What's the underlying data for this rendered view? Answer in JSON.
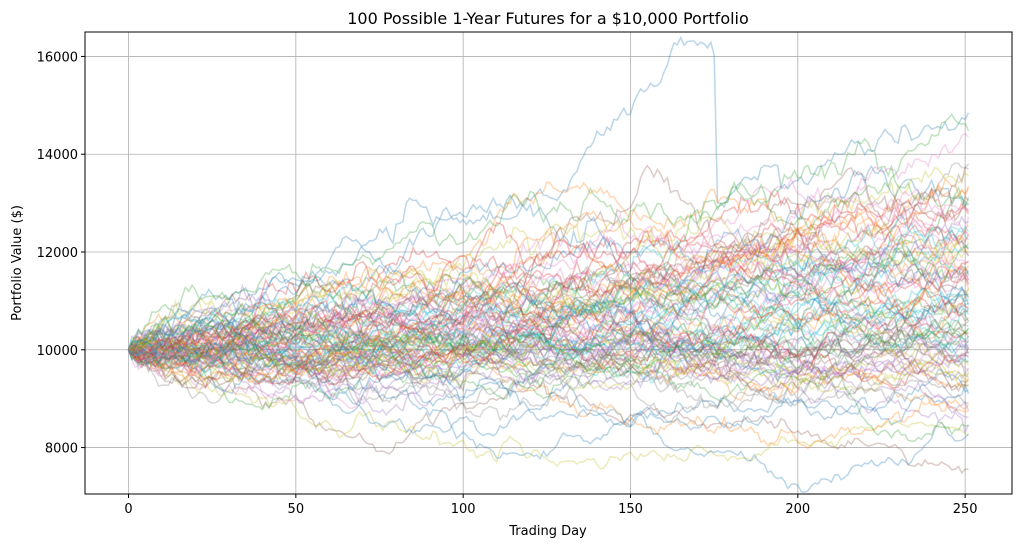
{
  "chart_data": {
    "type": "line",
    "title": "100 Possible 1-Year Futures for a $10,000 Portfolio",
    "xlabel": "Trading Day",
    "ylabel": "Portfolio Value ($)",
    "xlim": [
      -13,
      264
    ],
    "ylim": [
      7050,
      16500
    ],
    "xticks": [
      0,
      50,
      100,
      150,
      200,
      250
    ],
    "yticks": [
      8000,
      10000,
      12000,
      14000,
      16000
    ],
    "grid": true,
    "legend": "none",
    "series_count": 100,
    "starting_value": 10000,
    "trading_days": 252,
    "line_alpha": 0.3,
    "palette": [
      "#1f77b4",
      "#ff7f0e",
      "#2ca02c",
      "#d62728",
      "#9467bd",
      "#8c564b",
      "#e377c2",
      "#7f7f7f",
      "#bcbd22",
      "#17becf"
    ],
    "series_end_values": [
      14850,
      13300,
      12980,
      12350,
      8470,
      7560,
      9580,
      13800,
      11980,
      12250,
      9100,
      11250,
      10580,
      12780,
      10020,
      9380,
      14350,
      11560,
      8250,
      11020,
      9920,
      8880,
      13120,
      10860,
      10100,
      13700,
      11480,
      9760,
      12200,
      10850,
      9180,
      11920,
      10420,
      12830,
      8620,
      10250,
      11780,
      9450,
      13550,
      10720,
      8280,
      11250,
      10350,
      12350,
      9620,
      12050,
      11150,
      10820,
      9300,
      11620,
      12980,
      8750,
      10450,
      11420,
      9860,
      13050,
      10250,
      11050,
      9550,
      12420,
      10920,
      11720,
      8450,
      10050,
      12620,
      9950,
      11320,
      10580,
      9680,
      12150,
      11520,
      13350,
      10150,
      11820,
      9850,
      10650,
      11420,
      8920,
      12550,
      10280,
      11120,
      9420,
      14480,
      10780,
      11920,
      9260,
      12720,
      10480,
      11250,
      9750,
      10950,
      11620,
      12080,
      10320,
      8760,
      11350,
      12880,
      10200,
      9520,
      11080
    ],
    "highlight_extremes": {
      "max_peak": 16030,
      "max_peak_day": 175,
      "min_end": 7560
    }
  }
}
